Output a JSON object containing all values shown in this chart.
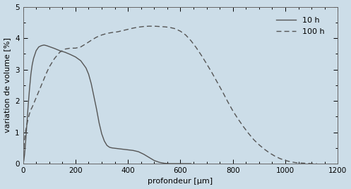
{
  "background_color": "#ccdde8",
  "line_color": "#555555",
  "xlabel": "profondeur [μm]",
  "ylabel": "variation de volume [%]",
  "xlim": [
    0,
    1200
  ],
  "ylim": [
    0.0,
    5.0
  ],
  "xticks": [
    0,
    200,
    400,
    600,
    800,
    1000,
    1200
  ],
  "yticks": [
    0.0,
    1.0,
    2.0,
    3.0,
    4.0,
    5.0
  ],
  "legend_labels": [
    "10 h",
    "100 h"
  ],
  "curve_10h": {
    "x": [
      0,
      3,
      6,
      10,
      15,
      20,
      25,
      30,
      35,
      40,
      50,
      60,
      70,
      80,
      90,
      100,
      110,
      120,
      140,
      160,
      180,
      200,
      220,
      240,
      250,
      260,
      270,
      280,
      290,
      300,
      310,
      320,
      330,
      340,
      350,
      360,
      380,
      400,
      420,
      440,
      460,
      480,
      500,
      520,
      540,
      560,
      580,
      600,
      620,
      640
    ],
    "y": [
      0.0,
      0.1,
      0.3,
      0.7,
      1.3,
      1.9,
      2.4,
      2.85,
      3.15,
      3.35,
      3.6,
      3.72,
      3.76,
      3.78,
      3.76,
      3.73,
      3.7,
      3.67,
      3.6,
      3.55,
      3.48,
      3.4,
      3.28,
      3.05,
      2.85,
      2.55,
      2.15,
      1.75,
      1.3,
      0.95,
      0.72,
      0.58,
      0.52,
      0.5,
      0.49,
      0.48,
      0.46,
      0.44,
      0.42,
      0.38,
      0.3,
      0.2,
      0.1,
      0.04,
      0.01,
      0.0,
      0.0,
      0.0,
      0.0,
      0.0
    ]
  },
  "curve_100h": {
    "x": [
      0,
      5,
      10,
      15,
      20,
      25,
      30,
      35,
      40,
      50,
      60,
      70,
      80,
      90,
      100,
      120,
      140,
      160,
      180,
      200,
      220,
      240,
      260,
      280,
      300,
      320,
      340,
      360,
      380,
      400,
      420,
      440,
      460,
      480,
      500,
      520,
      540,
      560,
      580,
      600,
      620,
      640,
      660,
      680,
      700,
      720,
      740,
      760,
      780,
      800,
      820,
      840,
      860,
      880,
      900,
      920,
      940,
      960,
      980,
      1000,
      1020,
      1040,
      1060,
      1080,
      1100,
      1120
    ],
    "y": [
      0.0,
      0.72,
      1.05,
      1.25,
      1.45,
      1.6,
      1.72,
      1.8,
      1.9,
      2.1,
      2.3,
      2.5,
      2.7,
      2.9,
      3.08,
      3.35,
      3.55,
      3.65,
      3.68,
      3.68,
      3.72,
      3.82,
      3.93,
      4.03,
      4.1,
      4.15,
      4.18,
      4.2,
      4.24,
      4.28,
      4.32,
      4.35,
      4.37,
      4.38,
      4.38,
      4.37,
      4.36,
      4.34,
      4.3,
      4.22,
      4.1,
      3.92,
      3.7,
      3.45,
      3.18,
      2.9,
      2.6,
      2.3,
      1.98,
      1.68,
      1.42,
      1.18,
      0.96,
      0.76,
      0.6,
      0.46,
      0.34,
      0.24,
      0.16,
      0.1,
      0.06,
      0.03,
      0.02,
      0.01,
      0.0,
      0.0
    ]
  }
}
